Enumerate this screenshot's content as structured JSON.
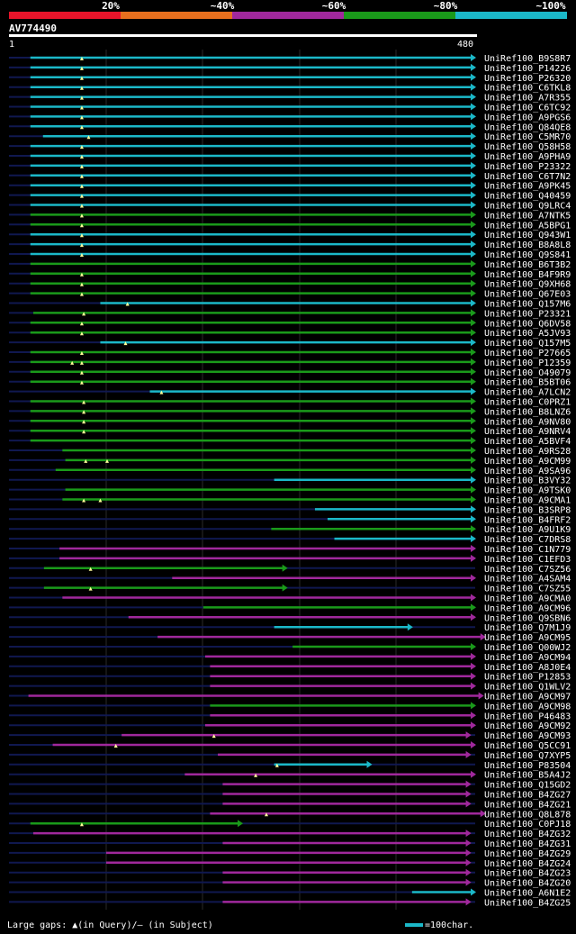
{
  "legend": {
    "labels": [
      "20%",
      "~40%",
      "~60%",
      "~80%",
      "~100%"
    ],
    "colors": [
      "#e8142a",
      "#e8701e",
      "#a0289c",
      "#1a9a1a",
      "#1bb8c8"
    ]
  },
  "query": {
    "name": "AV774490",
    "start": "1",
    "end": "480"
  },
  "footer": {
    "gaps_text": "Large gaps: ▲(in Query)/— (in Subject)",
    "scale_text": "=100char."
  },
  "chart_data": {
    "type": "alignment",
    "title": "AV774490",
    "query_length": 480,
    "color_scale": {
      "cyan": "~100%",
      "green": "~80%",
      "purple": "~60%",
      "orange": "~40%",
      "red": "20%"
    },
    "hits": [
      {
        "name": "UniRef100_B9S8R7",
        "start": 22,
        "end": 480,
        "color": "cyan",
        "gaps": [
          75
        ]
      },
      {
        "name": "UniRef100_P14226",
        "start": 22,
        "end": 480,
        "color": "cyan",
        "gaps": [
          75
        ]
      },
      {
        "name": "UniRef100_P26320",
        "start": 22,
        "end": 480,
        "color": "cyan",
        "gaps": [
          75
        ]
      },
      {
        "name": "UniRef100_C6TKL8",
        "start": 22,
        "end": 480,
        "color": "cyan",
        "gaps": [
          75
        ]
      },
      {
        "name": "UniRef100_A7R355",
        "start": 22,
        "end": 480,
        "color": "cyan",
        "gaps": [
          75
        ]
      },
      {
        "name": "UniRef100_C6TC92",
        "start": 22,
        "end": 480,
        "color": "cyan",
        "gaps": [
          75
        ]
      },
      {
        "name": "UniRef100_A9PGS6",
        "start": 22,
        "end": 480,
        "color": "cyan",
        "gaps": [
          75
        ]
      },
      {
        "name": "UniRef100_Q84QE8",
        "start": 22,
        "end": 480,
        "color": "cyan",
        "gaps": [
          75
        ]
      },
      {
        "name": "UniRef100_C5MR70",
        "start": 35,
        "end": 480,
        "color": "cyan",
        "gaps": [
          82
        ]
      },
      {
        "name": "UniRef100_Q58H58",
        "start": 22,
        "end": 480,
        "color": "cyan",
        "gaps": [
          75
        ]
      },
      {
        "name": "UniRef100_A9PHA9",
        "start": 22,
        "end": 480,
        "color": "cyan",
        "gaps": [
          75
        ]
      },
      {
        "name": "UniRef100_P23322",
        "start": 22,
        "end": 480,
        "color": "cyan",
        "gaps": [
          75
        ]
      },
      {
        "name": "UniRef100_C6T7N2",
        "start": 22,
        "end": 480,
        "color": "cyan",
        "gaps": [
          75
        ]
      },
      {
        "name": "UniRef100_A9PK45",
        "start": 22,
        "end": 480,
        "color": "cyan",
        "gaps": [
          75
        ]
      },
      {
        "name": "UniRef100_Q40459",
        "start": 22,
        "end": 480,
        "color": "cyan",
        "gaps": [
          75
        ]
      },
      {
        "name": "UniRef100_Q9LRC4",
        "start": 22,
        "end": 480,
        "color": "cyan",
        "gaps": [
          75
        ]
      },
      {
        "name": "UniRef100_A7NTK5",
        "start": 22,
        "end": 480,
        "color": "green",
        "gaps": [
          75
        ]
      },
      {
        "name": "UniRef100_A5BPG1",
        "start": 22,
        "end": 480,
        "color": "green",
        "gaps": [
          75
        ]
      },
      {
        "name": "UniRef100_Q943W1",
        "start": 22,
        "end": 480,
        "color": "cyan",
        "gaps": [
          75
        ]
      },
      {
        "name": "UniRef100_B8A8L8",
        "start": 22,
        "end": 480,
        "color": "cyan",
        "gaps": [
          75
        ]
      },
      {
        "name": "UniRef100_Q9S841",
        "start": 22,
        "end": 480,
        "color": "cyan",
        "gaps": [
          75
        ]
      },
      {
        "name": "UniRef100_B6T3B2",
        "start": 22,
        "end": 480,
        "color": "green",
        "gaps": []
      },
      {
        "name": "UniRef100_B4F9R9",
        "start": 22,
        "end": 480,
        "color": "green",
        "gaps": [
          75
        ]
      },
      {
        "name": "UniRef100_Q9XH68",
        "start": 22,
        "end": 480,
        "color": "green",
        "gaps": [
          75
        ]
      },
      {
        "name": "UniRef100_Q67E03",
        "start": 22,
        "end": 480,
        "color": "green",
        "gaps": [
          75
        ]
      },
      {
        "name": "UniRef100_Q157M6",
        "start": 94,
        "end": 480,
        "color": "cyan",
        "gaps": [
          122
        ]
      },
      {
        "name": "UniRef100_P23321",
        "start": 25,
        "end": 480,
        "color": "green",
        "gaps": [
          77
        ]
      },
      {
        "name": "UniRef100_Q6DV58",
        "start": 22,
        "end": 480,
        "color": "green",
        "gaps": [
          75
        ]
      },
      {
        "name": "UniRef100_A5JV93",
        "start": 22,
        "end": 480,
        "color": "green",
        "gaps": [
          75
        ]
      },
      {
        "name": "UniRef100_Q157M5",
        "start": 94,
        "end": 480,
        "color": "cyan",
        "gaps": [
          120
        ]
      },
      {
        "name": "UniRef100_P27665",
        "start": 22,
        "end": 480,
        "color": "green",
        "gaps": [
          75
        ]
      },
      {
        "name": "UniRef100_P12359",
        "start": 22,
        "end": 480,
        "color": "green",
        "gaps": [
          65,
          75
        ]
      },
      {
        "name": "UniRef100_O49079",
        "start": 22,
        "end": 480,
        "color": "green",
        "gaps": [
          75
        ]
      },
      {
        "name": "UniRef100_B5BT06",
        "start": 22,
        "end": 480,
        "color": "green",
        "gaps": [
          75
        ]
      },
      {
        "name": "UniRef100_A7LCN2",
        "start": 145,
        "end": 480,
        "color": "cyan",
        "gaps": [
          157
        ]
      },
      {
        "name": "UniRef100_C0PRZ1",
        "start": 22,
        "end": 480,
        "color": "green",
        "gaps": [
          77
        ]
      },
      {
        "name": "UniRef100_B8LNZ6",
        "start": 22,
        "end": 480,
        "color": "green",
        "gaps": [
          77
        ]
      },
      {
        "name": "UniRef100_A9NV80",
        "start": 22,
        "end": 480,
        "color": "green",
        "gaps": [
          77
        ]
      },
      {
        "name": "UniRef100_A9NRV4",
        "start": 22,
        "end": 480,
        "color": "green",
        "gaps": [
          77
        ]
      },
      {
        "name": "UniRef100_A5BVF4",
        "start": 22,
        "end": 480,
        "color": "green",
        "gaps": []
      },
      {
        "name": "UniRef100_A9RS28",
        "start": 55,
        "end": 480,
        "color": "green",
        "gaps": []
      },
      {
        "name": "UniRef100_A9CM99",
        "start": 58,
        "end": 480,
        "color": "green",
        "gaps": [
          79,
          101
        ]
      },
      {
        "name": "UniRef100_A9SA96",
        "start": 48,
        "end": 480,
        "color": "green",
        "gaps": []
      },
      {
        "name": "UniRef100_B3VY32",
        "start": 273,
        "end": 480,
        "color": "cyan",
        "gaps": []
      },
      {
        "name": "UniRef100_A9TSK0",
        "start": 58,
        "end": 480,
        "color": "green",
        "gaps": []
      },
      {
        "name": "UniRef100_A9CMA1",
        "start": 55,
        "end": 480,
        "color": "green",
        "gaps": [
          77,
          94
        ]
      },
      {
        "name": "UniRef100_B3SRP8",
        "start": 315,
        "end": 480,
        "color": "cyan",
        "gaps": []
      },
      {
        "name": "UniRef100_B4FRF2",
        "start": 328,
        "end": 480,
        "color": "cyan",
        "gaps": []
      },
      {
        "name": "UniRef100_A9U1K9",
        "start": 270,
        "end": 480,
        "color": "green",
        "gaps": []
      },
      {
        "name": "UniRef100_C7DRS8",
        "start": 335,
        "end": 480,
        "color": "cyan",
        "gaps": []
      },
      {
        "name": "UniRef100_C1N779",
        "start": 52,
        "end": 480,
        "color": "purple",
        "gaps": []
      },
      {
        "name": "UniRef100_C1EFD3",
        "start": 52,
        "end": 480,
        "color": "purple",
        "gaps": []
      },
      {
        "name": "UniRef100_C7SZ56",
        "start": 36,
        "end": 286,
        "color": "green",
        "gaps": [
          84
        ]
      },
      {
        "name": "UniRef100_A4SAM4",
        "start": 168,
        "end": 480,
        "color": "purple",
        "gaps": []
      },
      {
        "name": "UniRef100_C7SZ55",
        "start": 36,
        "end": 286,
        "color": "green",
        "gaps": [
          84
        ]
      },
      {
        "name": "UniRef100_A9CMA0",
        "start": 55,
        "end": 480,
        "color": "purple",
        "gaps": []
      },
      {
        "name": "UniRef100_A9CM96",
        "start": 200,
        "end": 480,
        "color": "green",
        "gaps": []
      },
      {
        "name": "UniRef100_Q9SBN6",
        "start": 123,
        "end": 480,
        "color": "purple",
        "gaps": []
      },
      {
        "name": "UniRef100_Q7M1J9",
        "start": 273,
        "end": 415,
        "color": "cyan",
        "gaps": []
      },
      {
        "name": "UniRef100_A9CM95",
        "start": 153,
        "end": 495,
        "color": "purple",
        "gaps": []
      },
      {
        "name": "UniRef100_Q00WJ2",
        "start": 292,
        "end": 480,
        "color": "green",
        "gaps": []
      },
      {
        "name": "UniRef100_A9CM94",
        "start": 202,
        "end": 480,
        "color": "purple",
        "gaps": []
      },
      {
        "name": "UniRef100_A8J0E4",
        "start": 207,
        "end": 480,
        "color": "purple",
        "gaps": []
      },
      {
        "name": "UniRef100_P12853",
        "start": 207,
        "end": 480,
        "color": "purple",
        "gaps": []
      },
      {
        "name": "UniRef100_Q1WLV2",
        "start": 207,
        "end": 480,
        "color": "purple",
        "gaps": []
      },
      {
        "name": "UniRef100_A9CM97",
        "start": 20,
        "end": 488,
        "color": "purple",
        "gaps": []
      },
      {
        "name": "UniRef100_A9CM98",
        "start": 207,
        "end": 480,
        "color": "green",
        "gaps": []
      },
      {
        "name": "UniRef100_P46483",
        "start": 207,
        "end": 480,
        "color": "purple",
        "gaps": []
      },
      {
        "name": "UniRef100_A9CM92",
        "start": 202,
        "end": 480,
        "color": "purple",
        "gaps": []
      },
      {
        "name": "UniRef100_A9CM93",
        "start": 116,
        "end": 475,
        "color": "purple",
        "gaps": [
          211
        ]
      },
      {
        "name": "UniRef100_Q5CC91",
        "start": 45,
        "end": 480,
        "color": "purple",
        "gaps": [
          110
        ]
      },
      {
        "name": "UniRef100_Q7XYP5",
        "start": 215,
        "end": 475,
        "color": "purple",
        "gaps": []
      },
      {
        "name": "UniRef100_P83504",
        "start": 273,
        "end": 373,
        "color": "cyan",
        "gaps": [
          276
        ]
      },
      {
        "name": "UniRef100_B5A4J2",
        "start": 181,
        "end": 480,
        "color": "purple",
        "gaps": [
          254
        ]
      },
      {
        "name": "UniRef100_Q15GD2",
        "start": 220,
        "end": 475,
        "color": "purple",
        "gaps": []
      },
      {
        "name": "UniRef100_B4ZG27",
        "start": 220,
        "end": 475,
        "color": "purple",
        "gaps": []
      },
      {
        "name": "UniRef100_B4ZG21",
        "start": 220,
        "end": 475,
        "color": "purple",
        "gaps": []
      },
      {
        "name": "UniRef100_Q8L878",
        "start": 207,
        "end": 490,
        "color": "purple",
        "gaps": [
          265
        ]
      },
      {
        "name": "UniRef100_C0PJ18",
        "start": 22,
        "end": 240,
        "color": "green",
        "gaps": [
          75
        ]
      },
      {
        "name": "UniRef100_B4ZG32",
        "start": 25,
        "end": 475,
        "color": "purple",
        "gaps": []
      },
      {
        "name": "UniRef100_B4ZG31",
        "start": 220,
        "end": 475,
        "color": "purple",
        "gaps": []
      },
      {
        "name": "UniRef100_B4ZG29",
        "start": 100,
        "end": 475,
        "color": "purple",
        "gaps": []
      },
      {
        "name": "UniRef100_B4ZG24",
        "start": 100,
        "end": 475,
        "color": "purple",
        "gaps": []
      },
      {
        "name": "UniRef100_B4ZG23",
        "start": 220,
        "end": 475,
        "color": "purple",
        "gaps": []
      },
      {
        "name": "UniRef100_B4ZG20",
        "start": 220,
        "end": 475,
        "color": "purple",
        "gaps": []
      },
      {
        "name": "UniRef100_A6N1E2",
        "start": 415,
        "end": 480,
        "color": "cyan",
        "gaps": []
      },
      {
        "name": "UniRef100_B4ZG25",
        "start": 220,
        "end": 475,
        "color": "purple",
        "gaps": []
      }
    ]
  }
}
